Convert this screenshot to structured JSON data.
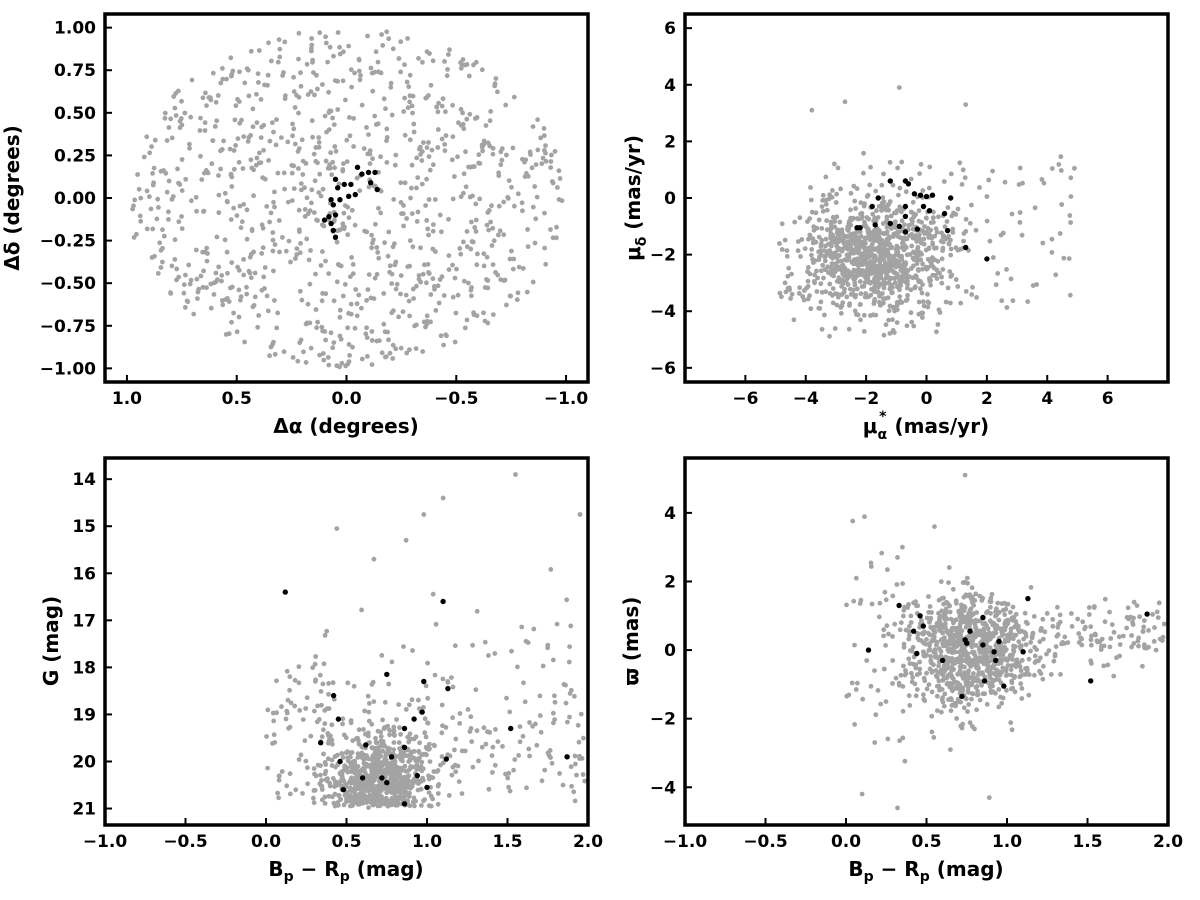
{
  "colors": {
    "field": "#a3a3a3",
    "members": "#000000",
    "axes": "#000000"
  },
  "chart_data": [
    {
      "type": "scatter",
      "id": "sky",
      "xlabel": "Δα (degrees)",
      "ylabel": "Δδ (degrees)",
      "xlim": [
        1.1,
        -1.1
      ],
      "ylim": [
        -1.08,
        1.08
      ],
      "xticks": [
        1.0,
        0.5,
        0.0,
        -0.5,
        -1.0
      ],
      "xtick_labels": [
        "1.0",
        "0.5",
        "0.0",
        "−0.5",
        "−1.0"
      ],
      "yticks": [
        -1.0,
        -0.75,
        -0.5,
        -0.25,
        0.0,
        0.25,
        0.5,
        0.75,
        1.0
      ],
      "ytick_labels": [
        "−1.00",
        "−0.75",
        "−0.50",
        "−0.25",
        "0.00",
        "0.25",
        "0.50",
        "0.75",
        "1.00"
      ],
      "field": {
        "distribution": "uniform within circle of radius 1.0 deg centred on (0,0)",
        "approx_count": 1000
      },
      "members": [
        {
          "x": 0.05,
          "y": 0.11
        },
        {
          "x": 0.04,
          "y": 0.06
        },
        {
          "x": 0.01,
          "y": 0.08
        },
        {
          "x": -0.02,
          "y": 0.08
        },
        {
          "x": 0.07,
          "y": -0.01
        },
        {
          "x": 0.06,
          "y": -0.04
        },
        {
          "x": 0.08,
          "y": -0.11
        },
        {
          "x": 0.07,
          "y": -0.15
        },
        {
          "x": 0.06,
          "y": -0.19
        },
        {
          "x": 0.05,
          "y": -0.23
        },
        {
          "x": 0.1,
          "y": -0.13
        },
        {
          "x": 0.05,
          "y": -0.1
        },
        {
          "x": 0.03,
          "y": -0.01
        },
        {
          "x": -0.05,
          "y": 0.18
        },
        {
          "x": -0.07,
          "y": 0.14
        },
        {
          "x": -0.1,
          "y": 0.15
        },
        {
          "x": -0.13,
          "y": 0.15
        },
        {
          "x": -0.11,
          "y": 0.09
        },
        {
          "x": -0.14,
          "y": 0.05
        },
        {
          "x": -0.04,
          "y": 0.02
        },
        {
          "x": -0.01,
          "y": 0.01
        }
      ]
    },
    {
      "type": "scatter",
      "id": "proper-motion",
      "xlabel_main": "μ",
      "xlabel_sub": "α",
      "xlabel_sup": "*",
      "xlabel_rest": "(mas/yr)",
      "ylabel_main": "μ",
      "ylabel_sub": "δ",
      "ylabel_rest": " (mas/yr)",
      "xlim": [
        -8,
        8
      ],
      "ylim": [
        -6.5,
        6.5
      ],
      "xticks": [
        -6,
        -4,
        -2,
        0,
        2,
        4,
        6
      ],
      "xtick_labels": [
        "−6",
        "−4",
        "−2",
        "0",
        "2",
        "4",
        "6"
      ],
      "yticks": [
        -6,
        -4,
        -2,
        0,
        2,
        4,
        6
      ],
      "ytick_labels": [
        "−6",
        "−4",
        "−2",
        "0",
        "2",
        "4",
        "6"
      ],
      "field": {
        "distribution": "dense cloud centred near (-2, -2), spanning x -5 to 5 and y -5 to 4",
        "approx_count": 1100
      },
      "members": [
        {
          "x": -2.3,
          "y": -1.05
        },
        {
          "x": -2.2,
          "y": -1.05
        },
        {
          "x": -1.8,
          "y": -0.3
        },
        {
          "x": -1.6,
          "y": 0.0
        },
        {
          "x": -1.2,
          "y": 0.6
        },
        {
          "x": -0.7,
          "y": 0.6
        },
        {
          "x": -0.6,
          "y": 0.5
        },
        {
          "x": -0.4,
          "y": 0.15
        },
        {
          "x": -0.2,
          "y": 0.1
        },
        {
          "x": 0.0,
          "y": 0.05
        },
        {
          "x": 0.2,
          "y": 0.1
        },
        {
          "x": -0.1,
          "y": -0.3
        },
        {
          "x": 0.1,
          "y": -0.45
        },
        {
          "x": -0.7,
          "y": -0.3
        },
        {
          "x": -0.7,
          "y": -0.65
        },
        {
          "x": -0.3,
          "y": -1.1
        },
        {
          "x": -0.7,
          "y": -1.2
        },
        {
          "x": -0.9,
          "y": -1.0
        },
        {
          "x": -1.2,
          "y": -0.9
        },
        {
          "x": -1.7,
          "y": -0.95
        },
        {
          "x": 0.6,
          "y": -0.55
        },
        {
          "x": 0.7,
          "y": -1.15
        },
        {
          "x": 1.3,
          "y": -1.75
        },
        {
          "x": 2.0,
          "y": -2.15
        },
        {
          "x": 0.8,
          "y": 0.0
        }
      ]
    },
    {
      "type": "scatter",
      "id": "cmd",
      "xlabel_parts": [
        "B",
        "p",
        " − R",
        "p",
        " (mag)"
      ],
      "ylabel": "G (mag)",
      "xlim": [
        -1.0,
        2.0
      ],
      "ylim": [
        21.35,
        13.55
      ],
      "xticks": [
        -1.0,
        -0.5,
        0.0,
        0.5,
        1.0,
        1.5,
        2.0
      ],
      "xtick_labels": [
        "−1.0",
        "−0.5",
        "0.0",
        "0.5",
        "1.0",
        "1.5",
        "2.0"
      ],
      "yticks": [
        14,
        15,
        16,
        17,
        18,
        19,
        20,
        21
      ],
      "ytick_labels": [
        "14",
        "15",
        "16",
        "17",
        "18",
        "19",
        "20",
        "21"
      ],
      "field": {
        "distribution": "dense clump near colour 0.7, G 20.3, trailing to colour 1.0–2.0 and brighter magnitudes",
        "approx_count": 1100
      },
      "members": [
        {
          "x": 0.12,
          "y": 16.4
        },
        {
          "x": 0.34,
          "y": 19.6
        },
        {
          "x": 0.42,
          "y": 18.6
        },
        {
          "x": 0.45,
          "y": 19.1
        },
        {
          "x": 0.46,
          "y": 20.0
        },
        {
          "x": 0.48,
          "y": 20.6
        },
        {
          "x": 0.6,
          "y": 20.35
        },
        {
          "x": 0.62,
          "y": 19.65
        },
        {
          "x": 0.72,
          "y": 20.35
        },
        {
          "x": 0.75,
          "y": 20.45
        },
        {
          "x": 0.75,
          "y": 18.15
        },
        {
          "x": 0.78,
          "y": 19.9
        },
        {
          "x": 0.86,
          "y": 20.9
        },
        {
          "x": 0.86,
          "y": 19.7
        },
        {
          "x": 0.86,
          "y": 19.3
        },
        {
          "x": 0.92,
          "y": 19.1
        },
        {
          "x": 0.94,
          "y": 20.3
        },
        {
          "x": 0.97,
          "y": 18.95
        },
        {
          "x": 0.98,
          "y": 18.3
        },
        {
          "x": 1.0,
          "y": 20.55
        },
        {
          "x": 1.1,
          "y": 16.6
        },
        {
          "x": 1.12,
          "y": 19.95
        },
        {
          "x": 1.13,
          "y": 18.45
        },
        {
          "x": 1.52,
          "y": 19.3
        },
        {
          "x": 1.87,
          "y": 19.9
        }
      ]
    },
    {
      "type": "scatter",
      "id": "parallax",
      "xlabel_parts": [
        "B",
        "p",
        " − R",
        "p",
        " (mag)"
      ],
      "ylabel": "ϖ (mas)",
      "xlim": [
        -1.0,
        2.0
      ],
      "ylim": [
        -5.1,
        5.6
      ],
      "xticks": [
        -1.0,
        -0.5,
        0.0,
        0.5,
        1.0,
        1.5,
        2.0
      ],
      "xtick_labels": [
        "−1.0",
        "−0.5",
        "0.0",
        "0.5",
        "1.0",
        "1.5",
        "2.0"
      ],
      "yticks": [
        -4,
        -2,
        0,
        2,
        4
      ],
      "ytick_labels": [
        "−4",
        "−2",
        "0",
        "2",
        "4"
      ],
      "field": {
        "distribution": "dense clump near colour 0.75, parallax 0, spread roughly ±4 mas, tail to colour 2.0",
        "approx_count": 1100
      },
      "members": [
        {
          "x": 0.14,
          "y": 0.0
        },
        {
          "x": 0.33,
          "y": 1.3
        },
        {
          "x": 0.42,
          "y": 0.55
        },
        {
          "x": 0.44,
          "y": -0.1
        },
        {
          "x": 0.46,
          "y": 1.0
        },
        {
          "x": 0.48,
          "y": 0.7
        },
        {
          "x": 0.6,
          "y": -0.3
        },
        {
          "x": 0.72,
          "y": -1.35
        },
        {
          "x": 0.74,
          "y": 0.3
        },
        {
          "x": 0.75,
          "y": 0.2
        },
        {
          "x": 0.77,
          "y": 0.55
        },
        {
          "x": 0.85,
          "y": 0.95
        },
        {
          "x": 0.86,
          "y": -0.9
        },
        {
          "x": 0.92,
          "y": -0.05
        },
        {
          "x": 0.93,
          "y": -0.3
        },
        {
          "x": 0.95,
          "y": 0.25
        },
        {
          "x": 0.98,
          "y": -1.05
        },
        {
          "x": 1.1,
          "y": -0.05
        },
        {
          "x": 1.13,
          "y": 1.5
        },
        {
          "x": 1.52,
          "y": -0.9
        },
        {
          "x": 1.87,
          "y": 1.05
        },
        {
          "x": 0.85,
          "y": 0.15
        }
      ]
    }
  ]
}
